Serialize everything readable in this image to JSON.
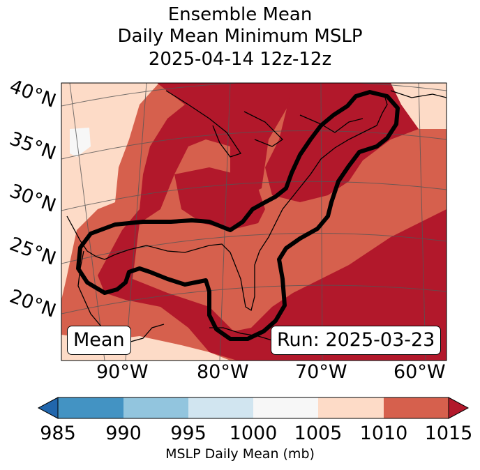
{
  "header": {
    "title_line1": "Ensemble Mean",
    "title_line2": "Daily Mean Minimum MSLP",
    "title_line3": "2025-04-14 12z-12z"
  },
  "map": {
    "lat_labels": [
      "40°N",
      "35°N",
      "30°N",
      "25°N",
      "20°N"
    ],
    "lon_labels": [
      "90°W",
      "80°W",
      "70°W",
      "60°W"
    ],
    "badge_left": "Mean",
    "badge_right": "Run: 2025-03-23",
    "colors": {
      "c1000_1005": "#f7f7f7",
      "c1005_1010": "#fddbc7",
      "c1010_1015": "#d6604d",
      "c1015_plus": "#b2182b",
      "contour": "#000000",
      "coast": "#000000",
      "grid": "#555555"
    }
  },
  "colorbar": {
    "label": "MSLP Daily Mean (mb)",
    "ticks": [
      "985",
      "990",
      "995",
      "1000",
      "1005",
      "1010",
      "1015"
    ],
    "colors": [
      "#2166ac",
      "#4393c3",
      "#92c5de",
      "#d1e5f0",
      "#f7f7f7",
      "#fddbc7",
      "#d6604d",
      "#b2182b"
    ]
  }
}
